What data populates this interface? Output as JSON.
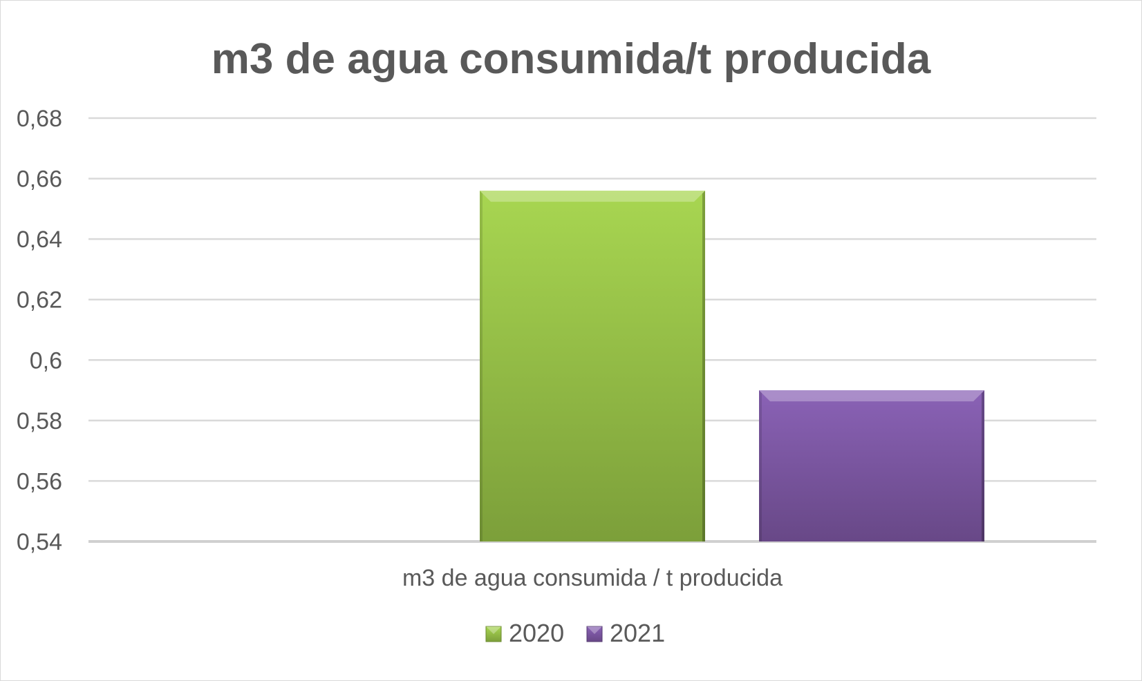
{
  "chart_data": {
    "type": "bar",
    "title": "m3 de agua consumida/t producida",
    "categories": [
      "m3 de agua consumida / t producida"
    ],
    "series": [
      {
        "name": "2020",
        "values": [
          0.656
        ],
        "color": "#92c045"
      },
      {
        "name": "2021",
        "values": [
          0.59
        ],
        "color": "#7a549f"
      }
    ],
    "ylim": [
      0.54,
      0.68
    ],
    "yticks": [
      "0,54",
      "0,56",
      "0,58",
      "0,6",
      "0,62",
      "0,64",
      "0,66",
      "0,68"
    ],
    "ytick_values": [
      0.54,
      0.56,
      0.58,
      0.6,
      0.62,
      0.64,
      0.66,
      0.68
    ],
    "grid": true,
    "legend_position": "bottom",
    "xlabel": "",
    "ylabel": ""
  }
}
